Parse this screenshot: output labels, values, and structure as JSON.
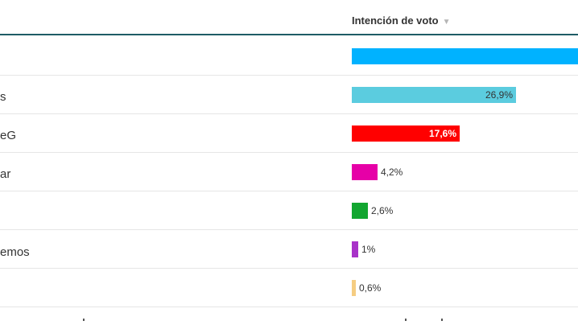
{
  "header": {
    "column_title": "Intención de voto",
    "sort_icon": "▼"
  },
  "chart_data": {
    "type": "bar",
    "orientation": "horizontal",
    "column_title": "Intención de voto",
    "rows": [
      {
        "label": "",
        "value": null,
        "value_label": "",
        "color": "#00b2ff",
        "label_style": "none"
      },
      {
        "label": "s",
        "value": 26.9,
        "value_label": "26,9%",
        "color": "#5bccdf",
        "label_style": "inside-dark"
      },
      {
        "label": "eG",
        "value": 17.6,
        "value_label": "17,6%",
        "color": "#ff0000",
        "label_style": "inside-white"
      },
      {
        "label": "ar",
        "value": 4.2,
        "value_label": "4,2%",
        "color": "#e600a7",
        "label_style": "outside"
      },
      {
        "label": "",
        "value": 2.6,
        "value_label": "2,6%",
        "color": "#12a630",
        "label_style": "outside"
      },
      {
        "label": "emos",
        "value": 1,
        "value_label": "1%",
        "color": "#a832c8",
        "label_style": "outside"
      },
      {
        "label": "",
        "value": 0.6,
        "value_label": "0,6%",
        "color": "#f5cd82",
        "label_style": "outside"
      }
    ]
  }
}
